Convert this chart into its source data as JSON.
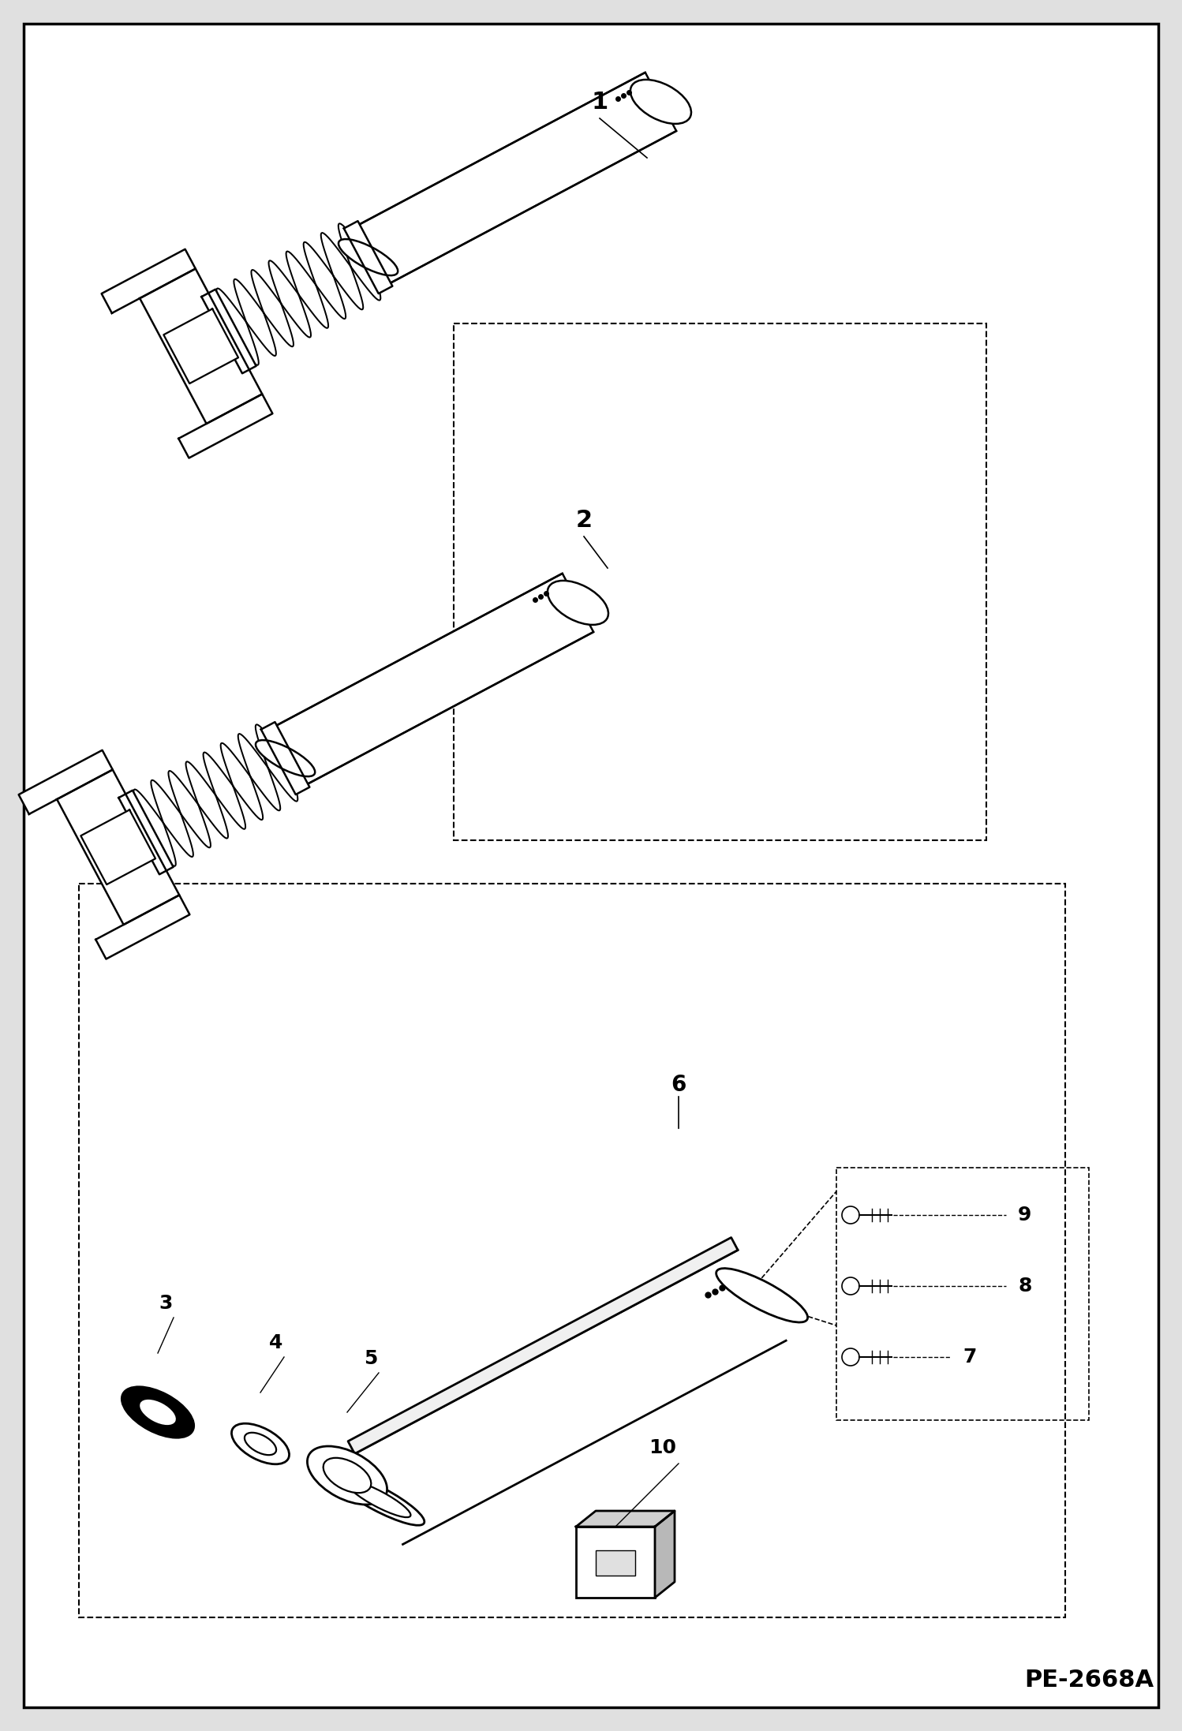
{
  "bg_color": "#e0e0e0",
  "inner_bg_color": "#ffffff",
  "border_color": "#000000",
  "line_color": "#000000",
  "watermark": "PE-2668A",
  "fig_width": 14.98,
  "fig_height": 21.94,
  "dpi": 100
}
